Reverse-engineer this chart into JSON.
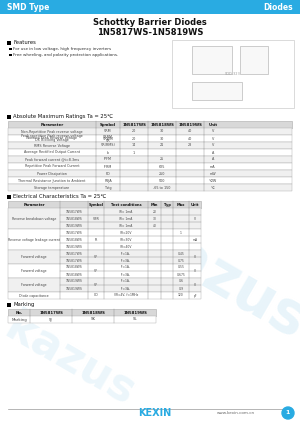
{
  "title1": "Schottky Barrier Diodes",
  "title2": "1N5817WS-1N5819WS",
  "header_left": "SMD Type",
  "header_right": "Diodes",
  "header_color": "#29ABE2",
  "features_title": "Features",
  "features": [
    "For use in low voltage, high frequency inverters",
    "Free wheeling, and polarity protection applications."
  ],
  "abs_max_title": "Absolute Maximum Ratings Ta = 25℃",
  "abs_max_col_widths": [
    88,
    24,
    28,
    28,
    28,
    18
  ],
  "abs_max_headers": [
    "Parameter",
    "Symbol",
    "1N5817WS",
    "1N5818WS",
    "1N5819WS",
    "Unit"
  ],
  "abs_max_rows": [
    [
      "Non-Repetitive Peak reverse voltage",
      "VRM",
      "20",
      "30",
      "40",
      "V"
    ],
    [
      "Peak repetitive Peak reverse voltage\nWorking Peak Reverse Voltage\nDC Blocking Voltage",
      "VRRM\nVRWM\nVR",
      "20",
      "30",
      "40",
      "V"
    ],
    [
      "RMS Reverse Voltage",
      "VR(RMS)",
      "14",
      "21",
      "28",
      "V"
    ],
    [
      "Average Rectified Output Current",
      "Io",
      "1",
      "",
      "",
      "A"
    ],
    [
      "Peak forward current @t=8.3ms",
      "IPFM",
      "",
      "25",
      "",
      "A"
    ],
    [
      "Repetitive Peak Forward Current",
      "IFRM",
      "",
      "625",
      "",
      "mA"
    ],
    [
      "Power Dissipation",
      "PD",
      "",
      "250",
      "",
      "mW"
    ],
    [
      "Thermal Resistance Junction to Ambient",
      "RθJA",
      "",
      "500",
      "",
      "℃/W"
    ],
    [
      "Storage temperature",
      "Tstg",
      "",
      "-65 to 150",
      "",
      "℃"
    ]
  ],
  "elec_char_title": "Electrical Characteristics Ta = 25℃",
  "elec_col_widths": [
    52,
    28,
    16,
    44,
    13,
    12,
    16,
    12
  ],
  "elec_char_headers": [
    "Parameter",
    "",
    "Symbol",
    "Test conditions",
    "Min",
    "Typ",
    "Max",
    "Unit"
  ],
  "marking_title": "Marking",
  "marking_headers": [
    "No.",
    "1N5817WS",
    "1N5818WS",
    "1N5819WS"
  ],
  "marking_rows": [
    [
      "Marking",
      "SJ",
      "SK",
      "SL"
    ]
  ],
  "footer_logo": "KEXIN",
  "footer_url": "www.kexin.com.cn",
  "bg_color": "#FFFFFF",
  "header_color_bar": "#29ABE2",
  "table_header_bg": "#D8D8D8",
  "table_row_alt": "#F0F0F0",
  "table_border": "#AAAAAA",
  "text_dark": "#111111",
  "text_mid": "#333333",
  "text_small": "#444444"
}
